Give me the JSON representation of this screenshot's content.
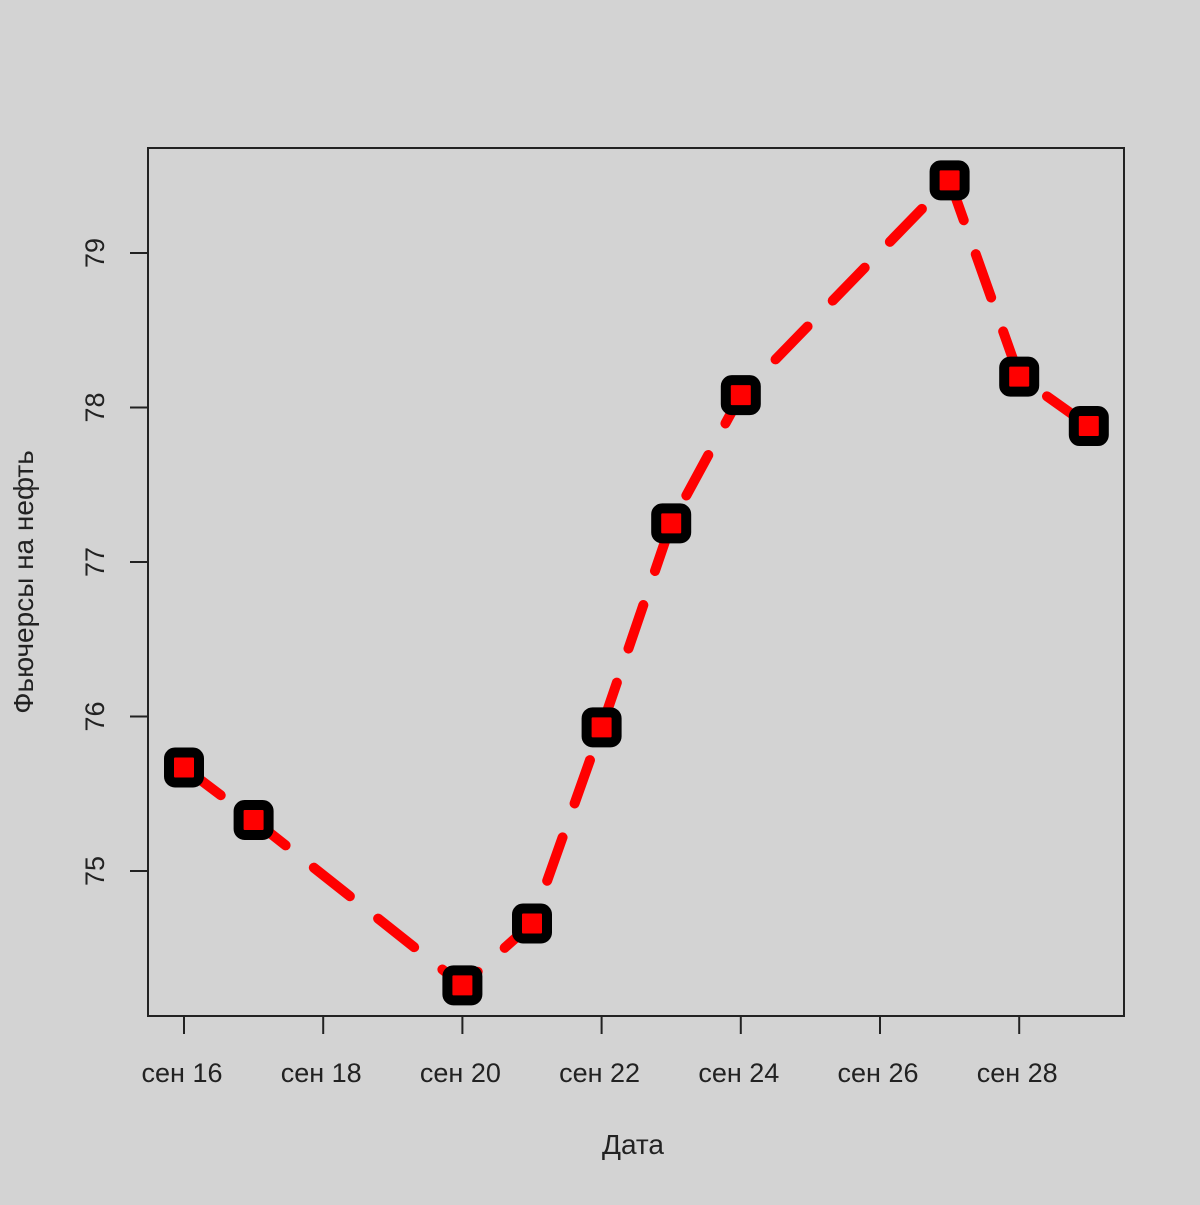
{
  "chart_data": {
    "type": "line",
    "title": "",
    "xlabel": "Дата",
    "ylabel": "Фьючерсы на нефть",
    "x_ticks": [
      "сен 16",
      "сен 18",
      "сен 20",
      "сен 22",
      "сен 24",
      "сен 26",
      "сен 28"
    ],
    "y_ticks": [
      "75",
      "76",
      "77",
      "78",
      "79"
    ],
    "xlim": [
      "сен 16",
      "сен 29"
    ],
    "ylim": [
      74.05,
      79.65
    ],
    "grid": false,
    "legend": "none",
    "series": [
      {
        "x": [
          "сен 16",
          "сен 17",
          "сен 20",
          "сен 21",
          "сен 22",
          "сен 23",
          "сен 24",
          "сен 27",
          "сен 28",
          "сен 29"
        ],
        "y": [
          75.67,
          75.33,
          74.26,
          74.66,
          75.93,
          77.25,
          78.08,
          79.47,
          78.2,
          77.88
        ],
        "line_style": "dashed",
        "line_color": "#ff0000",
        "marker": "square",
        "marker_color": "#ff0000",
        "marker_edge_color": "#000000"
      }
    ],
    "background": "#d3d3d3"
  }
}
